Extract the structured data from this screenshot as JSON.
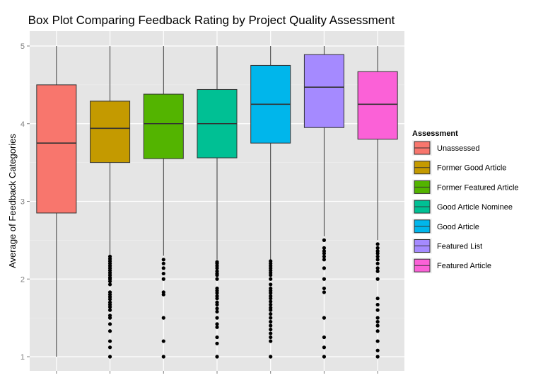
{
  "chart_data": {
    "type": "box",
    "title": "Box Plot Comparing Feedback Rating by Project Quality Assessment",
    "xlabel": "",
    "ylabel": "Average of Feedback Categories",
    "ylim": [
      0.9,
      5.05
    ],
    "yticks": [
      1,
      2,
      3,
      4,
      5
    ],
    "legend": {
      "title": "Assessment",
      "position": "right"
    },
    "categories": [
      "Unassessed",
      "Former Good Article",
      "Former Featured Article",
      "Good Article Nominee",
      "Good Article",
      "Featured List",
      "Featured Article"
    ],
    "colors": [
      "#F8766D",
      "#C49A00",
      "#53B400",
      "#00C094",
      "#00B6EB",
      "#A58AFF",
      "#FB61D7"
    ],
    "series": [
      {
        "name": "Unassessed",
        "whisker_low": 1.0,
        "q1": 2.85,
        "median": 3.75,
        "q3": 4.5,
        "whisker_high": 5.0,
        "outliers": []
      },
      {
        "name": "Former Good Article",
        "whisker_low": 2.3,
        "q1": 3.5,
        "median": 3.94,
        "q3": 4.29,
        "whisker_high": 5.0,
        "outliers": [
          2.29,
          2.26,
          2.23,
          2.2,
          2.17,
          2.14,
          2.11,
          2.08,
          2.05,
          2.02,
          2.0,
          1.97,
          1.93,
          1.83,
          1.8,
          1.77,
          1.74,
          1.7,
          1.67,
          1.64,
          1.6,
          1.53,
          1.5,
          1.42,
          1.33,
          1.2,
          1.12,
          1.0
        ]
      },
      {
        "name": "Former Featured Article",
        "whisker_low": 2.3,
        "q1": 3.55,
        "median": 4.0,
        "q3": 4.38,
        "whisker_high": 5.0,
        "outliers": [
          2.25,
          2.2,
          2.14,
          2.07,
          2.0,
          1.83,
          1.8,
          1.5,
          1.2,
          1.0
        ]
      },
      {
        "name": "Good Article Nominee",
        "whisker_low": 2.25,
        "q1": 3.56,
        "median": 4.0,
        "q3": 4.44,
        "whisker_high": 5.0,
        "outliers": [
          2.22,
          2.2,
          2.17,
          2.14,
          2.1,
          2.07,
          2.05,
          2.0,
          1.88,
          1.85,
          1.82,
          1.78,
          1.75,
          1.7,
          1.67,
          1.62,
          1.58,
          1.5,
          1.42,
          1.38,
          1.25,
          1.17,
          1.0
        ]
      },
      {
        "name": "Good Article",
        "whisker_low": 2.25,
        "q1": 3.75,
        "median": 4.25,
        "q3": 4.75,
        "whisker_high": 5.0,
        "outliers": [
          2.23,
          2.2,
          2.17,
          2.14,
          2.11,
          2.08,
          2.05,
          2.0,
          1.93,
          1.88,
          1.85,
          1.82,
          1.78,
          1.75,
          1.71,
          1.67,
          1.63,
          1.6,
          1.55,
          1.5,
          1.45,
          1.4,
          1.35,
          1.3,
          1.25,
          1.2,
          1.0
        ]
      },
      {
        "name": "Featured List",
        "whisker_low": 2.55,
        "q1": 3.95,
        "median": 4.47,
        "q3": 4.89,
        "whisker_high": 5.0,
        "outliers": [
          2.5,
          2.4,
          2.36,
          2.33,
          2.29,
          2.25,
          2.14,
          2.0,
          1.88,
          1.83,
          1.5,
          1.25,
          1.12,
          1.0
        ]
      },
      {
        "name": "Featured Article",
        "whisker_low": 2.5,
        "q1": 3.8,
        "median": 4.25,
        "q3": 4.67,
        "whisker_high": 5.0,
        "outliers": [
          2.45,
          2.4,
          2.36,
          2.33,
          2.29,
          2.25,
          2.2,
          2.14,
          2.1,
          2.0,
          1.75,
          1.67,
          1.6,
          1.5,
          1.45,
          1.4,
          1.33,
          1.2,
          1.08,
          1.0
        ]
      }
    ]
  }
}
